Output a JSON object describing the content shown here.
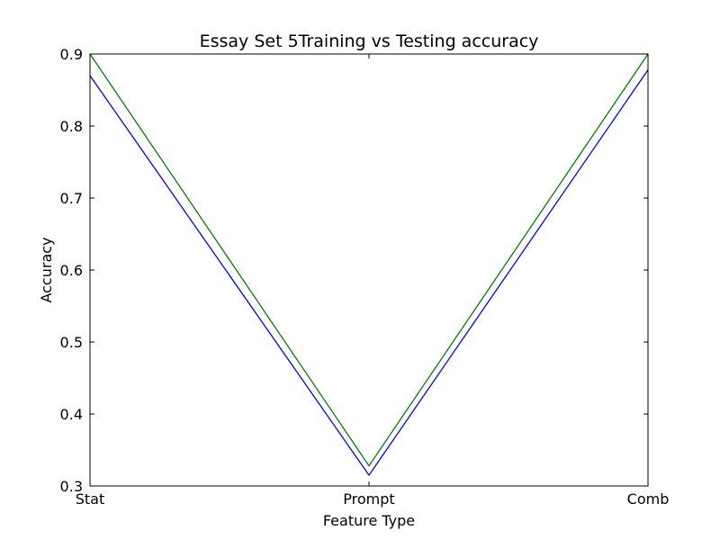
{
  "chart_data": {
    "type": "line",
    "title": "Essay Set 5Training vs Testing accuracy",
    "xlabel": "Feature Type",
    "ylabel": "Accuracy",
    "categories": [
      "Stat",
      "Prompt",
      "Comb"
    ],
    "ylim": [
      0.3,
      0.9
    ],
    "yticks": [
      "0.3",
      "0.4",
      "0.5",
      "0.6",
      "0.7",
      "0.8",
      "0.9"
    ],
    "grid": false,
    "series": [
      {
        "values": [
          0.87,
          0.315,
          0.878
        ],
        "color": "#0000ff"
      },
      {
        "values": [
          0.9,
          0.328,
          0.9
        ],
        "color": "#008000"
      }
    ]
  }
}
